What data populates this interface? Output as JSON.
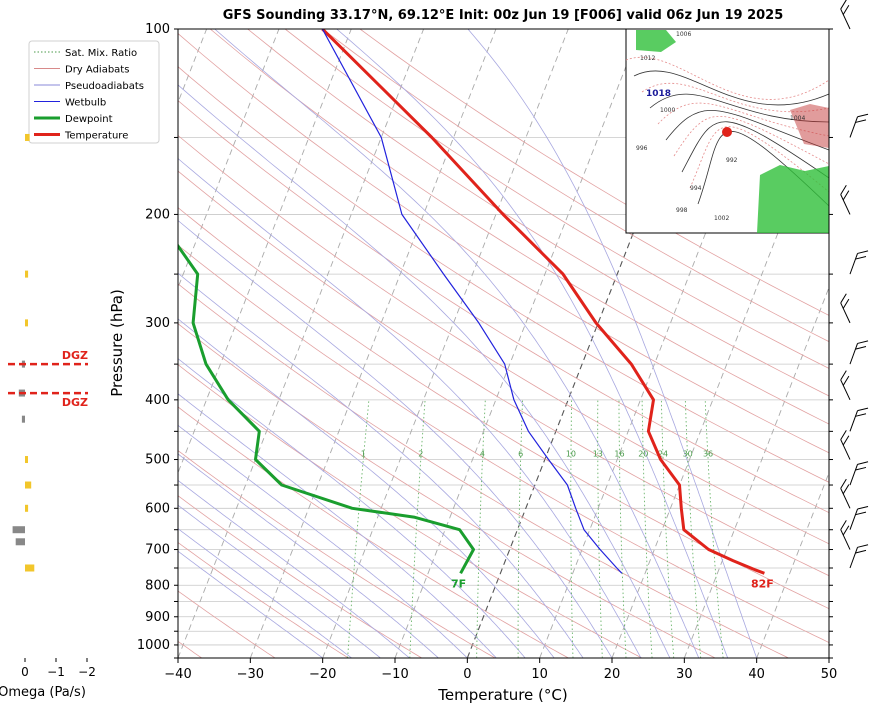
{
  "chart_data": {
    "type": "skew-t",
    "title": "GFS Sounding 33.17°N, 69.12°E Init: 00z Jun 19 [F006] valid 06z Jun 19 2025",
    "xlabel": "Temperature (°C)",
    "ylabel": "Pressure (hPa)",
    "xlim": [
      -40,
      50
    ],
    "ylim": [
      1050,
      100
    ],
    "y_scale": "log",
    "grid": true,
    "x_ticks": [
      -40,
      -30,
      -20,
      -10,
      0,
      10,
      20,
      30,
      40,
      50
    ],
    "y_ticks": [
      100,
      200,
      300,
      400,
      500,
      600,
      700,
      800,
      900,
      1000
    ],
    "legend": {
      "position": "top-left",
      "entries": [
        {
          "label": "Sat. Mix. Ratio",
          "color": "#4a9a4a",
          "style": "dotted"
        },
        {
          "label": "Dry Adiabats",
          "color": "#d88a8a",
          "style": "solid"
        },
        {
          "label": "Pseudoadiabats",
          "color": "#8a8ad8",
          "style": "solid"
        },
        {
          "label": "Wetbulb",
          "color": "#2222dd",
          "style": "solid"
        },
        {
          "label": "Dewpoint",
          "color": "#1a9e2e",
          "style": "bold"
        },
        {
          "label": "Temperature",
          "color": "#e0231b",
          "style": "bold"
        }
      ]
    },
    "series": [
      {
        "name": "Temperature",
        "color": "#e0231b",
        "pressure": [
          765,
          755,
          730,
          700,
          650,
          600,
          550,
          500,
          450,
          400,
          350,
          300,
          250,
          200,
          150,
          100
        ],
        "values": [
          36.5,
          35,
          31.5,
          27.5,
          23,
          21.5,
          20,
          16,
          12.8,
          11.8,
          6.8,
          -0.3,
          -7.5,
          -19,
          -33,
          -54
        ]
      },
      {
        "name": "Dewpoint",
        "color": "#1a9e2e",
        "pressure": [
          765,
          700,
          650,
          620,
          600,
          550,
          500,
          450,
          400,
          350,
          300,
          250,
          200,
          150,
          100
        ],
        "values": [
          -5.5,
          -5,
          -8,
          -15,
          -24,
          -35,
          -40,
          -41,
          -47,
          -52,
          -56,
          -58,
          -67,
          -76,
          -88
        ]
      },
      {
        "name": "Wetbulb",
        "color": "#2222dd",
        "pressure": [
          765,
          750,
          700,
          650,
          600,
          550,
          500,
          450,
          400,
          350,
          300,
          250,
          200,
          150,
          100
        ],
        "values": [
          16.8,
          15.8,
          12.5,
          9.2,
          6.9,
          4.5,
          0.5,
          -3.8,
          -7.5,
          -10.7,
          -16.5,
          -24,
          -33,
          -40,
          -54
        ]
      }
    ],
    "surface_labels": {
      "temperature": "82F",
      "dewpoint": "7F"
    },
    "mixing_ratio_labels": [
      "1",
      "2",
      "4",
      "6",
      "10",
      "13",
      "16",
      "20",
      "24",
      "30",
      "36"
    ],
    "mixing_ratio_values": [
      1,
      2,
      4,
      6,
      10,
      13,
      16,
      20,
      24,
      30,
      36
    ],
    "mixing_ratio_label_pressure": 500,
    "dgz_label": "DGZ",
    "dgz_pressures": [
      350,
      390
    ],
    "omega": {
      "xlabel": "Omega (Pa/s)",
      "ticks": [
        "0",
        "−1",
        "−2"
      ],
      "tick_values": [
        0,
        -1,
        -2
      ],
      "pressure": [
        150,
        250,
        300,
        350,
        390,
        430,
        500,
        550,
        600,
        650,
        680,
        750
      ],
      "values": [
        -0.15,
        -0.1,
        -0.07,
        0.1,
        0.2,
        0.1,
        -0.05,
        -0.2,
        -0.1,
        0.4,
        0.3,
        -0.3
      ]
    },
    "winds_barb_levels": [
      100,
      150,
      200,
      250,
      300,
      350,
      400,
      450,
      500,
      550,
      600,
      650,
      700,
      750
    ],
    "map_inset": {
      "labels": [
        "1018",
        "1006",
        "1012",
        "1000",
        "996",
        "992",
        "994",
        "998",
        "1002",
        "1004"
      ]
    }
  }
}
